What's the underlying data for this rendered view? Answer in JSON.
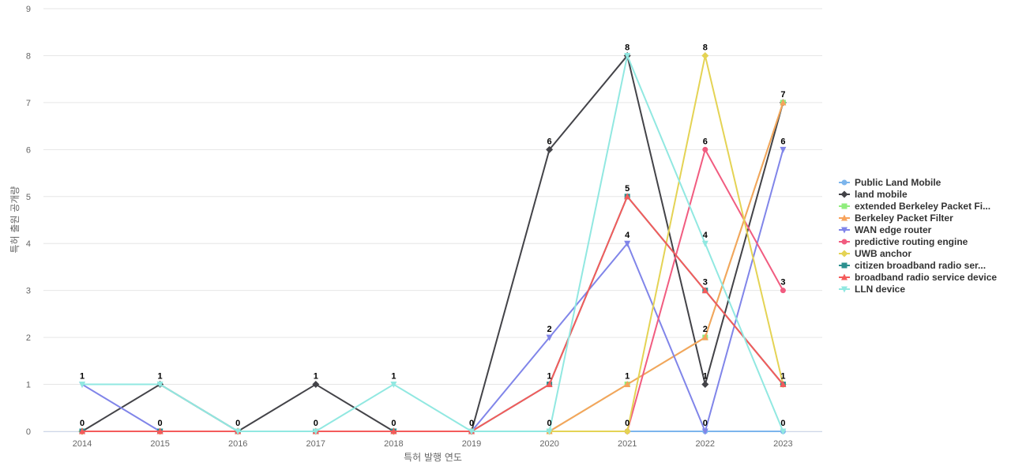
{
  "chart_data": {
    "type": "line",
    "title": "",
    "xlabel": "특허 발행 연도",
    "ylabel": "특허 출원 공개량",
    "x": [
      "2014",
      "2015",
      "2016",
      "2017",
      "2018",
      "2019",
      "2020",
      "2021",
      "2022",
      "2023"
    ],
    "ylim": [
      0,
      9
    ],
    "yticks": [
      0,
      1,
      2,
      3,
      4,
      5,
      6,
      7,
      8,
      9
    ],
    "grid": true,
    "legend_position": "right",
    "series": [
      {
        "name": "Public Land Mobile",
        "color": "#7cb5ec",
        "marker": "circle",
        "values": [
          0,
          0,
          0,
          0,
          0,
          0,
          0,
          0,
          0,
          0
        ]
      },
      {
        "name": "land mobile",
        "color": "#434348",
        "marker": "diamond",
        "values": [
          0,
          1,
          0,
          1,
          0,
          0,
          6,
          8,
          1,
          7
        ]
      },
      {
        "name": "extended Berkeley Packet Fi...",
        "color": "#90ed7d",
        "marker": "square",
        "values": [
          0,
          0,
          0,
          0,
          0,
          0,
          0,
          1,
          2,
          7
        ]
      },
      {
        "name": "Berkeley Packet Filter",
        "color": "#f7a35c",
        "marker": "triangle",
        "values": [
          0,
          0,
          0,
          0,
          0,
          0,
          0,
          1,
          2,
          7
        ]
      },
      {
        "name": "WAN edge router",
        "color": "#8085e9",
        "marker": "triangle-down",
        "values": [
          1,
          0,
          0,
          0,
          0,
          0,
          2,
          4,
          0,
          6
        ]
      },
      {
        "name": "predictive routing engine",
        "color": "#f15c80",
        "marker": "circle",
        "values": [
          0,
          0,
          0,
          0,
          0,
          0,
          0,
          0,
          6,
          3
        ]
      },
      {
        "name": "UWB anchor",
        "color": "#e4d354",
        "marker": "diamond",
        "values": [
          0,
          0,
          0,
          0,
          0,
          0,
          0,
          0,
          8,
          1
        ]
      },
      {
        "name": "citizen broadband radio ser...",
        "color": "#2b908f",
        "marker": "square",
        "values": [
          0,
          0,
          0,
          0,
          0,
          0,
          1,
          5,
          3,
          1
        ]
      },
      {
        "name": "broadband radio service device",
        "color": "#f45b5b",
        "marker": "triangle",
        "values": [
          0,
          0,
          0,
          0,
          0,
          0,
          1,
          5,
          3,
          1
        ]
      },
      {
        "name": "LLN device",
        "color": "#91e8e1",
        "marker": "triangle-down",
        "values": [
          1,
          1,
          0,
          0,
          1,
          0,
          0,
          8,
          4,
          0
        ]
      }
    ],
    "data_labels": [
      {
        "x": "2014",
        "top": "1",
        "bottom": "0"
      },
      {
        "x": "2015",
        "top": "1",
        "bottom": "0"
      },
      {
        "x": "2016",
        "top": "",
        "bottom": "0"
      },
      {
        "x": "2017",
        "top": "1",
        "bottom": "0"
      },
      {
        "x": "2018",
        "top": "1",
        "bottom": "0"
      },
      {
        "x": "2019",
        "top": "",
        "bottom": "0"
      },
      {
        "x": "2020",
        "top": "6",
        "mid": [
          "2",
          "1"
        ],
        "bottom": "0"
      },
      {
        "x": "2021",
        "top": "8",
        "mid": [
          "5",
          "4",
          "1"
        ],
        "bottom": "0"
      },
      {
        "x": "2022",
        "top": "8",
        "mid": [
          "6",
          "4",
          "3",
          "2",
          "1"
        ],
        "bottom": "0"
      },
      {
        "x": "2023",
        "top": "7",
        "mid": [
          "6",
          "3",
          "1"
        ],
        "bottom": "0"
      }
    ]
  }
}
